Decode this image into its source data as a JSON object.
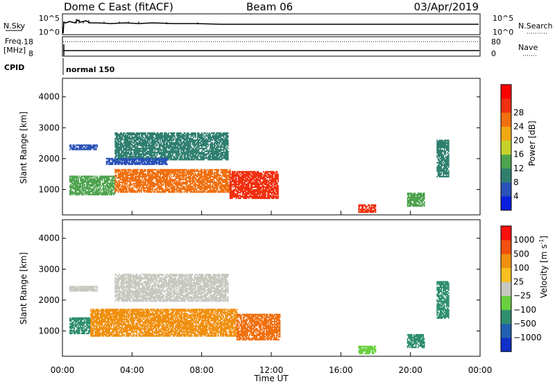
{
  "header": {
    "station": "Dome C East (fitACF)",
    "beam": "Beam 06",
    "date": "03/Apr/2019"
  },
  "top_panel": {
    "left_label": "N.Sky",
    "right_label": "N.Search",
    "left_ticks": [
      "10^5",
      "10^0"
    ],
    "right_ticks": [
      "10^5",
      "10^0"
    ]
  },
  "freq_panel": {
    "left_label_1": "Freq.",
    "left_label_2": "[MHz]",
    "right_label": "Nave",
    "left_ticks": [
      "18",
      "8"
    ],
    "right_ticks": [
      "80",
      "0"
    ]
  },
  "cpid": {
    "label": "CPID",
    "value": "normal 150"
  },
  "chart_data": [
    {
      "type": "heatmap",
      "parameter": "power",
      "ylabel": "Slant Range [km]",
      "xlabel": "Time UT",
      "xlim_hours": [
        0,
        24
      ],
      "ylim_km": [
        180,
        4600
      ],
      "x_ticks": [
        "00:00",
        "04:00",
        "08:00",
        "12:00",
        "16:00",
        "20:00",
        "00:00"
      ],
      "y_ticks": [
        "1000",
        "2000",
        "3000",
        "4000"
      ],
      "colorbar": {
        "label": "Power [dB]",
        "tick_labels": [
          "4",
          "8",
          "12",
          "16",
          "20",
          "24",
          "28"
        ],
        "colors": [
          "#0a1fe0",
          "#2a52b8",
          "#2f7f6f",
          "#4ea34e",
          "#c6d22a",
          "#f0a814",
          "#f07010",
          "#f03010",
          "#ff0000"
        ]
      },
      "regions": [
        {
          "t0": 0.4,
          "t1": 3.0,
          "r0": 820,
          "r1": 1450,
          "color": "#4ea34e"
        },
        {
          "t0": 3.0,
          "t1": 9.6,
          "r0": 900,
          "r1": 1650,
          "color": "#f07010"
        },
        {
          "t0": 9.6,
          "t1": 12.4,
          "r0": 700,
          "r1": 1600,
          "color": "#f03010"
        },
        {
          "t0": 0.4,
          "t1": 2.0,
          "r0": 2280,
          "r1": 2450,
          "color": "#2a52b8"
        },
        {
          "t0": 3.0,
          "t1": 9.5,
          "r0": 1950,
          "r1": 2850,
          "color": "#2f7f6f"
        },
        {
          "t0": 2.5,
          "t1": 6.0,
          "r0": 1800,
          "r1": 2000,
          "color": "#2a52b8"
        },
        {
          "t0": 17.0,
          "t1": 18.0,
          "r0": 250,
          "r1": 500,
          "color": "#f03010"
        },
        {
          "t0": 19.8,
          "t1": 20.8,
          "r0": 450,
          "r1": 900,
          "color": "#4ea34e"
        },
        {
          "t0": 21.5,
          "t1": 22.2,
          "r0": 1400,
          "r1": 2600,
          "color": "#2f7f6f"
        }
      ]
    },
    {
      "type": "heatmap",
      "parameter": "velocity",
      "ylabel": "Slant Range [km]",
      "xlabel": "Time UT",
      "xlim_hours": [
        0,
        24
      ],
      "ylim_km": [
        180,
        4600
      ],
      "x_ticks": [
        "00:00",
        "04:00",
        "08:00",
        "12:00",
        "16:00",
        "20:00",
        "00:00"
      ],
      "y_ticks": [
        "1000",
        "2000",
        "3000",
        "4000"
      ],
      "colorbar": {
        "label": "Velocity [m s^-1]",
        "label_main": "Velocity [m s",
        "label_sup": "-1",
        "label_end": "]",
        "tick_labels": [
          "1000",
          "500",
          "100",
          "25",
          "−25",
          "−100",
          "−500",
          "−1000"
        ],
        "colors": [
          "#1030c8",
          "#2060b0",
          "#2f8f6f",
          "#6ad040",
          "#c8c8c0",
          "#f8c020",
          "#f09010",
          "#f05010",
          "#ff1010"
        ]
      },
      "regions": [
        {
          "t0": 0.4,
          "t1": 1.6,
          "r0": 900,
          "r1": 1400,
          "color": "#2f8f6f"
        },
        {
          "t0": 1.6,
          "t1": 10.0,
          "r0": 820,
          "r1": 1700,
          "color": "#f09010"
        },
        {
          "t0": 10.0,
          "t1": 12.5,
          "r0": 700,
          "r1": 1550,
          "color": "#f07010"
        },
        {
          "t0": 0.4,
          "t1": 2.0,
          "r0": 2280,
          "r1": 2450,
          "color": "#c8c8c0"
        },
        {
          "t0": 3.0,
          "t1": 9.5,
          "r0": 1950,
          "r1": 2850,
          "color": "#c8c8c0"
        },
        {
          "t0": 17.0,
          "t1": 18.0,
          "r0": 250,
          "r1": 500,
          "color": "#6ad040"
        },
        {
          "t0": 19.8,
          "t1": 20.8,
          "r0": 450,
          "r1": 900,
          "color": "#2f8f6f"
        },
        {
          "t0": 21.5,
          "t1": 22.2,
          "r0": 1400,
          "r1": 2600,
          "color": "#2f8f6f"
        }
      ]
    }
  ]
}
